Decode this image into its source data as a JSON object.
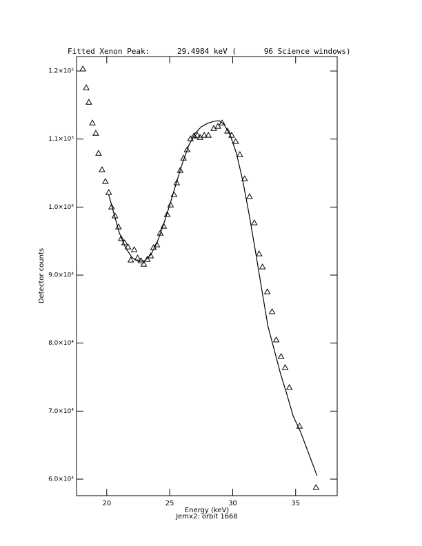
{
  "chart_data": {
    "type": "scatter",
    "title": "Fitted Xenon Peak:      29.4984 keV (      96 Science windows)",
    "x_label": "Energy (keV)",
    "y_label": "Detector counts",
    "subtitle": "Jemx2: orbit 1668",
    "xlim": [
      17.6,
      38.3
    ],
    "ylim": [
      57570,
      122130
    ],
    "xticks": [
      20,
      25,
      30,
      35
    ],
    "yticks": [
      {
        "value": 60000,
        "label": "6.0×10⁴"
      },
      {
        "value": 70000,
        "label": "7.0×10⁴"
      },
      {
        "value": 80000,
        "label": "8.0×10⁴"
      },
      {
        "value": 90000,
        "label": "9.0×10⁴"
      },
      {
        "value": 100000,
        "label": "1.0×10⁵"
      },
      {
        "value": 110000,
        "label": "1.1×10⁵"
      },
      {
        "value": 120000,
        "label": "1.2×10⁵"
      }
    ],
    "color": "#000000",
    "series": [
      {
        "kind": "points",
        "x": [
          18.1,
          18.37,
          18.58,
          18.86,
          19.13,
          19.35,
          19.62,
          19.89,
          20.16,
          20.38,
          20.65,
          20.93,
          21.14,
          21.42,
          21.69,
          21.91,
          22.18,
          22.45,
          22.72,
          22.94,
          23.22,
          23.49,
          23.71,
          23.98,
          24.25,
          24.52,
          24.8,
          25.07,
          25.34,
          25.56,
          25.83,
          26.1,
          26.38,
          26.65,
          26.92,
          27.19,
          27.41,
          27.74,
          28.07,
          28.5,
          28.83,
          29.16,
          29.59,
          29.92,
          30.24,
          30.57,
          30.95,
          31.34,
          31.72,
          32.1,
          32.37,
          32.75,
          33.13,
          33.46,
          33.84,
          34.17,
          34.5,
          35.31,
          36.62
        ],
        "values": [
          120300,
          117550,
          115420,
          112380,
          110860,
          107920,
          105490,
          103770,
          102150,
          100020,
          98700,
          97080,
          95360,
          94750,
          94140,
          92220,
          93740,
          92520,
          92120,
          91610,
          92320,
          92830,
          94040,
          94450,
          96170,
          97180,
          98910,
          100320,
          101840,
          103570,
          105390,
          107210,
          108430,
          110050,
          110460,
          110560,
          110250,
          110560,
          110560,
          111570,
          111880,
          112380,
          111170,
          110560,
          109650,
          107720,
          104170,
          101540,
          97690,
          93130,
          91200,
          87560,
          84620,
          80470,
          78030,
          76410,
          73480,
          67800,
          58780
        ]
      },
      {
        "kind": "line",
        "x": [
          20.16,
          20.5,
          21,
          21.5,
          22,
          22.5,
          23,
          23.5,
          24,
          24.5,
          25,
          25.5,
          26,
          26.5,
          27,
          27.5,
          28,
          28.5,
          28.9,
          29.3,
          29.8,
          30.3,
          30.8,
          31.3,
          31.8,
          32.3,
          32.8,
          33.3,
          33.8,
          34.3,
          34.8,
          35.4,
          36.7
        ],
        "values": [
          101800,
          99500,
          96200,
          94000,
          92600,
          92000,
          92100,
          93000,
          94800,
          97400,
          100300,
          103400,
          106400,
          109000,
          110800,
          111800,
          112300,
          112600,
          112700,
          112200,
          110600,
          107900,
          103900,
          99000,
          93600,
          88000,
          82500,
          79000,
          75500,
          72500,
          69300,
          66900,
          60500
        ]
      }
    ]
  }
}
